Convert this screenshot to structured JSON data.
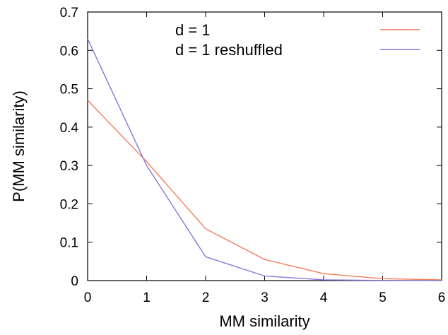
{
  "chart_data": {
    "type": "line",
    "xlabel": "MM similarity",
    "ylabel": "P(MM similarity)",
    "xlim": [
      0,
      6
    ],
    "ylim": [
      0,
      0.7
    ],
    "xticks": [
      "0",
      "1",
      "2",
      "3",
      "4",
      "5",
      "6"
    ],
    "yticks": [
      "0",
      "0.1",
      "0.2",
      "0.3",
      "0.4",
      "0.5",
      "0.6",
      "0.7"
    ],
    "grid": false,
    "legend_position": "top-right",
    "x": [
      0,
      1,
      2,
      3,
      4,
      5,
      6
    ],
    "series": [
      {
        "name": "d = 1",
        "color": "#f47c5a",
        "values": [
          0.47,
          0.31,
          0.135,
          0.055,
          0.018,
          0.005,
          0.002
        ]
      },
      {
        "name": "d = 1 reshuffled",
        "color": "#8a76d6",
        "values": [
          0.63,
          0.3,
          0.062,
          0.012,
          0.002,
          0.0005,
          0.0002
        ]
      }
    ]
  }
}
